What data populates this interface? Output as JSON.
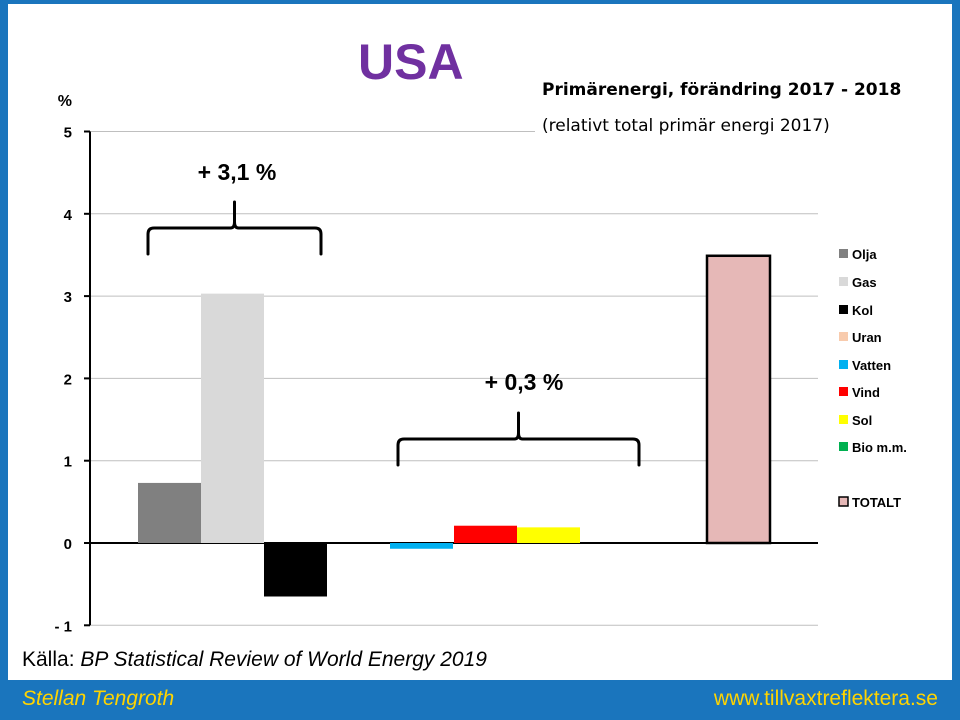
{
  "title": "USA",
  "subtitle": "Primärenergi, förändring 2017 - 2018",
  "subtitle2": "(relativt total primär energi 2017)",
  "source_label": "Källa:",
  "source_text": "BP Statistical Review of World Energy 2019",
  "footer": {
    "author": "Stellan Tengroth",
    "site": "www.tillvaxtreflektera.se"
  },
  "chart_data": {
    "type": "bar",
    "ylabel": "%",
    "ylim": [
      -1,
      5
    ],
    "yticks": [
      -1,
      0,
      1,
      2,
      3,
      4,
      5
    ],
    "ytick_labels": [
      "- 1",
      "0",
      "1",
      "2",
      "3",
      "4",
      "5"
    ],
    "grid": true,
    "legend_position": "right",
    "series": [
      {
        "name": "Olja",
        "value": 0.73,
        "color": "#808080"
      },
      {
        "name": "Gas",
        "value": 3.03,
        "color": "#d9d9d9"
      },
      {
        "name": "Kol",
        "value": -0.65,
        "color": "#000000"
      },
      {
        "name": "Uran",
        "value": 0.0,
        "color": "#f8cbad"
      },
      {
        "name": "Vatten",
        "value": -0.07,
        "color": "#00b0f0"
      },
      {
        "name": "Vind",
        "value": 0.21,
        "color": "#ff0000"
      },
      {
        "name": "Sol",
        "value": 0.19,
        "color": "#ffff00"
      },
      {
        "name": "Bio m.m.",
        "value": 0.0,
        "color": "#00b050"
      },
      {
        "name": "TOTALT",
        "value": 3.49,
        "color": "#e6b8b7"
      }
    ],
    "annotations": [
      "+ 3,1 %",
      "+ 0,3 %"
    ]
  }
}
